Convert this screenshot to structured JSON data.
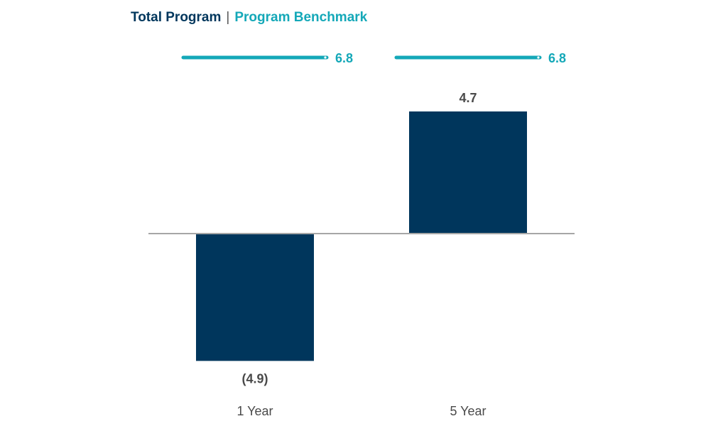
{
  "legend": {
    "series_a": "Total Program",
    "separator": "|",
    "series_b": "Program Benchmark"
  },
  "colors": {
    "bar": "#00365c",
    "benchmark": "#14a8b8",
    "axis": "#a6a6a6",
    "label": "#4a4a4a"
  },
  "chart_data": {
    "type": "bar",
    "categories": [
      "1 Year",
      "5 Year"
    ],
    "series": [
      {
        "name": "Total Program",
        "values": [
          -4.9,
          4.7
        ],
        "labels": [
          "(4.9)",
          "4.7"
        ]
      },
      {
        "name": "Program Benchmark",
        "values": [
          6.8,
          6.8
        ],
        "labels": [
          "6.8",
          "6.8"
        ]
      }
    ],
    "title": "",
    "xlabel": "",
    "ylabel": "",
    "ylim": [
      -6,
      6.8
    ],
    "grid": false,
    "legend_position": "top-left"
  }
}
